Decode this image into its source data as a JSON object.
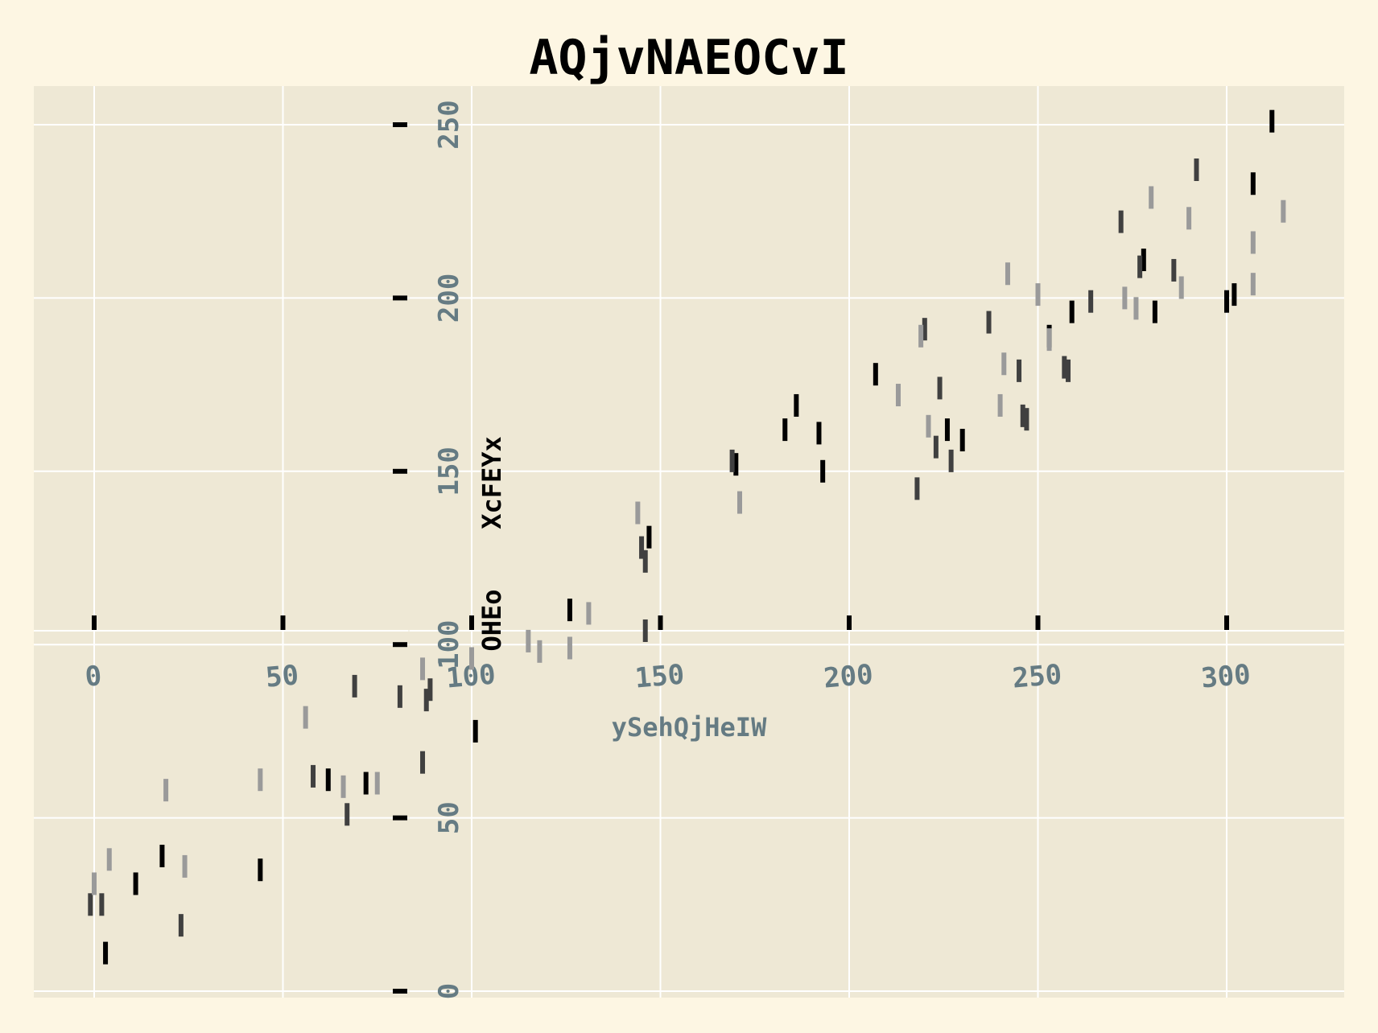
{
  "chart_data": {
    "type": "scatter",
    "marker": "vertical-line",
    "title": "AQjvNAEOCvI",
    "xlabel": "ySehQjHeIW",
    "ylabel": "XcFEYx",
    "ylabel2": "OHEo",
    "xlim": [
      -16,
      332
    ],
    "ylim": [
      0,
      260
    ],
    "xticks": [
      0,
      50,
      100,
      150,
      200,
      250,
      300
    ],
    "yticks": [
      0,
      50,
      100,
      150,
      200,
      250
    ],
    "grid": true,
    "colors": {
      "background": "#fdf6e3",
      "plot_area": "#eee8d5",
      "grid": "#ffffff",
      "tick_text": "#657b83",
      "series_dark": "#000000",
      "series_mid": "#404040",
      "series_light": "#9a9a9a"
    },
    "series": [
      {
        "color": "#000000",
        "points": [
          [
            3,
            11
          ],
          [
            11,
            31
          ],
          [
            18,
            39
          ],
          [
            44,
            35
          ],
          [
            62,
            61
          ],
          [
            72,
            60
          ],
          [
            101,
            75
          ],
          [
            126,
            110
          ],
          [
            147,
            131
          ],
          [
            170,
            152
          ],
          [
            183,
            162
          ],
          [
            186,
            169
          ],
          [
            192,
            161
          ],
          [
            193,
            150
          ],
          [
            207,
            178
          ],
          [
            226,
            162
          ],
          [
            230,
            159
          ],
          [
            253,
            189
          ],
          [
            259,
            196
          ],
          [
            278,
            211
          ],
          [
            281,
            196
          ],
          [
            300,
            199
          ],
          [
            302,
            201
          ],
          [
            307,
            233
          ],
          [
            312,
            251
          ]
        ]
      },
      {
        "color": "#404040",
        "points": [
          [
            -1,
            25
          ],
          [
            2,
            25
          ],
          [
            23,
            19
          ],
          [
            58,
            62
          ],
          [
            67,
            51
          ],
          [
            69,
            88
          ],
          [
            81,
            85
          ],
          [
            87,
            66
          ],
          [
            88,
            84
          ],
          [
            89,
            87
          ],
          [
            145,
            128
          ],
          [
            146,
            124
          ],
          [
            146,
            104
          ],
          [
            169,
            153
          ],
          [
            218,
            145
          ],
          [
            220,
            191
          ],
          [
            223,
            157
          ],
          [
            224,
            174
          ],
          [
            227,
            153
          ],
          [
            237,
            193
          ],
          [
            245,
            179
          ],
          [
            246,
            166
          ],
          [
            247,
            165
          ],
          [
            257,
            180
          ],
          [
            258,
            179
          ],
          [
            264,
            199
          ],
          [
            277,
            209
          ],
          [
            286,
            208
          ],
          [
            292,
            237
          ],
          [
            272,
            222
          ]
        ]
      },
      {
        "color": "#9a9a9a",
        "points": [
          [
            0,
            31
          ],
          [
            4,
            38
          ],
          [
            19,
            58
          ],
          [
            24,
            36
          ],
          [
            44,
            61
          ],
          [
            56,
            79
          ],
          [
            66,
            59
          ],
          [
            75,
            60
          ],
          [
            87,
            93
          ],
          [
            100,
            96
          ],
          [
            115,
            101
          ],
          [
            118,
            98
          ],
          [
            126,
            99
          ],
          [
            131,
            109
          ],
          [
            144,
            138
          ],
          [
            171,
            141
          ],
          [
            219,
            189
          ],
          [
            213,
            172
          ],
          [
            221,
            163
          ],
          [
            240,
            169
          ],
          [
            241,
            181
          ],
          [
            242,
            207
          ],
          [
            250,
            201
          ],
          [
            253,
            188
          ],
          [
            273,
            200
          ],
          [
            276,
            197
          ],
          [
            280,
            229
          ],
          [
            288,
            203
          ],
          [
            290,
            223
          ],
          [
            307,
            216
          ],
          [
            307,
            204
          ],
          [
            315,
            225
          ]
        ]
      }
    ]
  }
}
